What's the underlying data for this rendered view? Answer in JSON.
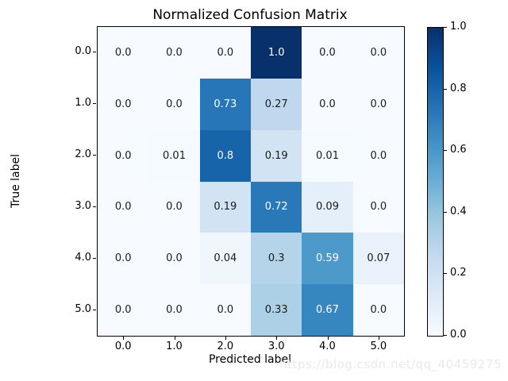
{
  "title": "Normalized Confusion Matrix",
  "watermark": "https://blog.csdn.net/qq_40459275",
  "chart_data": {
    "type": "heatmap",
    "title": "Normalized Confusion Matrix",
    "xlabel": "Predicted label",
    "ylabel": "True label",
    "x_tick_labels": [
      "0.0",
      "1.0",
      "2.0",
      "3.0",
      "4.0",
      "5.0"
    ],
    "y_tick_labels": [
      "0.0",
      "1.0",
      "2.0",
      "3.0",
      "4.0",
      "5.0"
    ],
    "matrix": [
      [
        0.0,
        0.0,
        0.0,
        1.0,
        0.0,
        0.0
      ],
      [
        0.0,
        0.0,
        0.73,
        0.27,
        0.0,
        0.0
      ],
      [
        0.0,
        0.01,
        0.8,
        0.19,
        0.01,
        0.0
      ],
      [
        0.0,
        0.0,
        0.19,
        0.72,
        0.09,
        0.0
      ],
      [
        0.0,
        0.0,
        0.04,
        0.3,
        0.59,
        0.07
      ],
      [
        0.0,
        0.0,
        0.0,
        0.33,
        0.67,
        0.0
      ]
    ],
    "cell_labels": [
      [
        "0.0",
        "0.0",
        "0.0",
        "1.0",
        "0.0",
        "0.0"
      ],
      [
        "0.0",
        "0.0",
        "0.73",
        "0.27",
        "0.0",
        "0.0"
      ],
      [
        "0.0",
        "0.01",
        "0.8",
        "0.19",
        "0.01",
        "0.0"
      ],
      [
        "0.0",
        "0.0",
        "0.19",
        "0.72",
        "0.09",
        "0.0"
      ],
      [
        "0.0",
        "0.0",
        "0.04",
        "0.3",
        "0.59",
        "0.07"
      ],
      [
        "0.0",
        "0.0",
        "0.0",
        "0.33",
        "0.67",
        "0.0"
      ]
    ],
    "colormap": "Blues",
    "value_range": [
      0.0,
      1.0
    ],
    "grid": false,
    "colorbar": {
      "ticks": [
        "0.0",
        "0.2",
        "0.4",
        "0.6",
        "0.8",
        "1.0"
      ],
      "min": 0.0,
      "max": 1.0,
      "position": "right"
    }
  },
  "colors": {
    "cmap_low": "#f7fbff",
    "cmap_high": "#08306b",
    "cell_text_dark": "#1a1a1a",
    "cell_text_light": "#ffffff",
    "spine": "#000000",
    "watermark": "#e9e9e9"
  }
}
